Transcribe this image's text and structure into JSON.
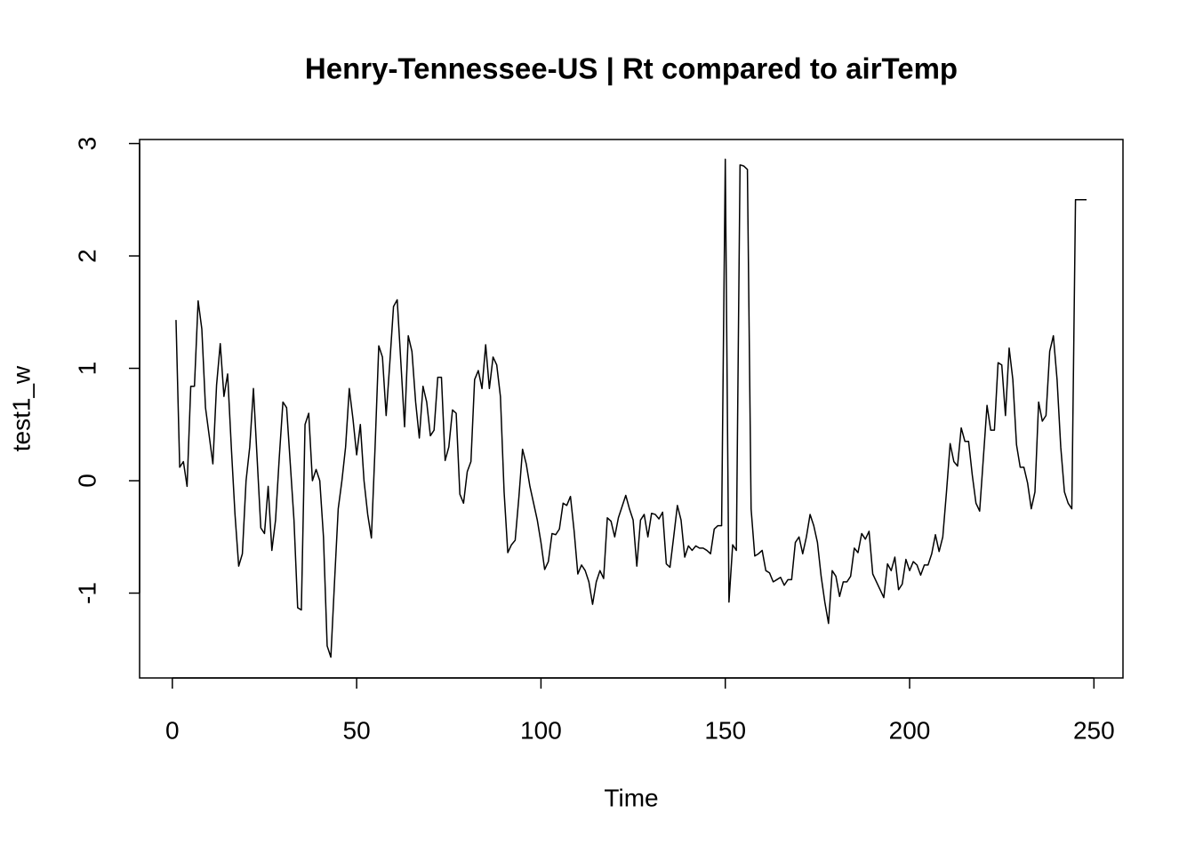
{
  "chart_data": {
    "type": "line",
    "title": "Henry-Tennessee-US | Rt compared to airTemp",
    "x_label": "Time",
    "y_label": "test1_w",
    "color": "#000000",
    "xlim": [
      -8.88,
      257.88
    ],
    "ylim": [
      -1.755,
      3.036
    ],
    "xticks": [
      0,
      50,
      100,
      150,
      200,
      250
    ],
    "yticks": [
      -1,
      0,
      1,
      2,
      3
    ],
    "x": [
      1,
      2,
      3,
      4,
      5,
      6,
      7,
      8,
      9,
      10,
      11,
      12,
      13,
      14,
      15,
      16,
      17,
      18,
      19,
      20,
      21,
      22,
      23,
      24,
      25,
      26,
      27,
      28,
      29,
      30,
      31,
      32,
      33,
      34,
      35,
      36,
      37,
      38,
      39,
      40,
      41,
      42,
      43,
      44,
      45,
      46,
      47,
      48,
      49,
      50,
      51,
      52,
      53,
      54,
      55,
      56,
      57,
      58,
      59,
      60,
      61,
      62,
      63,
      64,
      65,
      66,
      67,
      68,
      69,
      70,
      71,
      72,
      73,
      74,
      75,
      76,
      77,
      78,
      79,
      80,
      81,
      82,
      83,
      84,
      85,
      86,
      87,
      88,
      89,
      90,
      91,
      92,
      93,
      94,
      95,
      96,
      97,
      98,
      99,
      100,
      101,
      102,
      103,
      104,
      105,
      106,
      107,
      108,
      109,
      110,
      111,
      112,
      113,
      114,
      115,
      116,
      117,
      118,
      119,
      120,
      121,
      122,
      123,
      124,
      125,
      126,
      127,
      128,
      129,
      130,
      131,
      132,
      133,
      134,
      135,
      136,
      137,
      138,
      139,
      140,
      141,
      142,
      143,
      144,
      145,
      146,
      147,
      148,
      149,
      150,
      151,
      152,
      153,
      154,
      155,
      156,
      157,
      158,
      159,
      160,
      161,
      162,
      163,
      164,
      165,
      166,
      167,
      168,
      169,
      170,
      171,
      172,
      173,
      174,
      175,
      176,
      177,
      178,
      179,
      180,
      181,
      182,
      183,
      184,
      185,
      186,
      187,
      188,
      189,
      190,
      191,
      192,
      193,
      194,
      195,
      196,
      197,
      198,
      199,
      200,
      201,
      202,
      203,
      204,
      205,
      206,
      207,
      208,
      209,
      210,
      211,
      212,
      213,
      214,
      215,
      216,
      217,
      218,
      219,
      220,
      221,
      222,
      223,
      224,
      225,
      226,
      227,
      228,
      229,
      230,
      231,
      232,
      233,
      234,
      235,
      236,
      237,
      238,
      239,
      240,
      241,
      242,
      243,
      244,
      245,
      246,
      247,
      248
    ],
    "series": [
      {
        "name": "test1_w",
        "color": "#000000",
        "values": [
          1.43,
          0.12,
          0.17,
          -0.05,
          0.84,
          0.84,
          1.6,
          1.35,
          0.65,
          0.4,
          0.15,
          0.85,
          1.22,
          0.75,
          0.95,
          0.3,
          -0.3,
          -0.76,
          -0.65,
          0.0,
          0.3,
          0.82,
          0.2,
          -0.42,
          -0.47,
          -0.05,
          -0.62,
          -0.35,
          0.2,
          0.7,
          0.65,
          0.15,
          -0.35,
          -1.13,
          -1.15,
          0.5,
          0.6,
          0.0,
          0.1,
          0.0,
          -0.5,
          -1.47,
          -1.57,
          -0.9,
          -0.25,
          0.0,
          0.3,
          0.82,
          0.55,
          0.23,
          0.5,
          0.0,
          -0.3,
          -0.51,
          0.3,
          1.2,
          1.1,
          0.58,
          1.05,
          1.55,
          1.61,
          1.05,
          0.48,
          1.29,
          1.15,
          0.7,
          0.38,
          0.84,
          0.7,
          0.4,
          0.45,
          0.92,
          0.92,
          0.18,
          0.3,
          0.63,
          0.6,
          -0.12,
          -0.2,
          0.08,
          0.17,
          0.9,
          0.98,
          0.82,
          1.21,
          0.82,
          1.1,
          1.03,
          0.75,
          -0.1,
          -0.64,
          -0.57,
          -0.53,
          -0.15,
          0.28,
          0.15,
          -0.05,
          -0.2,
          -0.35,
          -0.55,
          -0.79,
          -0.72,
          -0.47,
          -0.48,
          -0.43,
          -0.2,
          -0.22,
          -0.14,
          -0.45,
          -0.83,
          -0.75,
          -0.8,
          -0.9,
          -1.1,
          -0.9,
          -0.8,
          -0.87,
          -0.33,
          -0.36,
          -0.5,
          -0.33,
          -0.23,
          -0.13,
          -0.25,
          -0.35,
          -0.76,
          -0.35,
          -0.3,
          -0.5,
          -0.29,
          -0.3,
          -0.34,
          -0.28,
          -0.74,
          -0.77,
          -0.5,
          -0.22,
          -0.35,
          -0.68,
          -0.58,
          -0.62,
          -0.58,
          -0.6,
          -0.6,
          -0.62,
          -0.65,
          -0.43,
          -0.4,
          -0.4,
          2.86,
          -1.08,
          -0.57,
          -0.62,
          2.81,
          2.8,
          2.77,
          -0.25,
          -0.67,
          -0.65,
          -0.62,
          -0.8,
          -0.82,
          -0.9,
          -0.88,
          -0.86,
          -0.93,
          -0.88,
          -0.88,
          -0.55,
          -0.5,
          -0.65,
          -0.5,
          -0.3,
          -0.4,
          -0.55,
          -0.85,
          -1.08,
          -1.27,
          -0.8,
          -0.85,
          -1.03,
          -0.9,
          -0.9,
          -0.85,
          -0.6,
          -0.64,
          -0.47,
          -0.52,
          -0.45,
          -0.83,
          -0.9,
          -0.97,
          -1.04,
          -0.74,
          -0.8,
          -0.68,
          -0.97,
          -0.92,
          -0.7,
          -0.8,
          -0.72,
          -0.75,
          -0.84,
          -0.75,
          -0.75,
          -0.65,
          -0.48,
          -0.63,
          -0.5,
          -0.1,
          0.33,
          0.17,
          0.13,
          0.47,
          0.35,
          0.35,
          0.05,
          -0.2,
          -0.27,
          0.2,
          0.67,
          0.45,
          0.45,
          1.05,
          1.03,
          0.58,
          1.18,
          0.9,
          0.32,
          0.12,
          0.12,
          -0.02,
          -0.25,
          -0.1,
          0.7,
          0.53,
          0.58,
          1.15,
          1.29,
          0.9,
          0.3,
          -0.1,
          -0.2,
          -0.25,
          2.5,
          2.5,
          2.5,
          2.5
        ]
      }
    ]
  }
}
